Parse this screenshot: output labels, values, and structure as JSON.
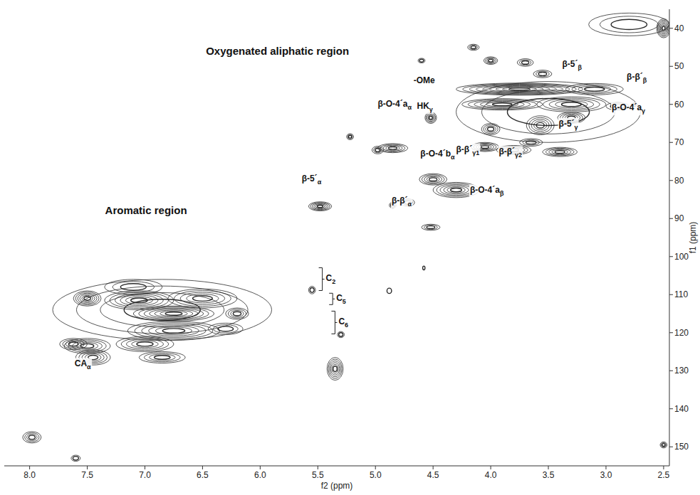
{
  "chart_data": {
    "type": "contour",
    "x_label": "f2 (ppm)",
    "y_label": "f1 (ppm)",
    "xlim": [
      8.22,
      2.45
    ],
    "ylim": [
      35,
      155
    ],
    "xticks": [
      {
        "value": 8,
        "label": "8.0"
      },
      {
        "value": 7.5,
        "label": "7.5"
      },
      {
        "value": 7,
        "label": "7.0"
      },
      {
        "value": 6.5,
        "label": "6.5"
      },
      {
        "value": 6,
        "label": "6.0"
      },
      {
        "value": 5.5,
        "label": "5.5"
      },
      {
        "value": 5,
        "label": "5.0"
      },
      {
        "value": 4.5,
        "label": "4.5"
      },
      {
        "value": 4,
        "label": "4.0"
      },
      {
        "value": 3.5,
        "label": "3.5"
      },
      {
        "value": 3,
        "label": "3.0"
      },
      {
        "value": 2.5,
        "label": "2.5"
      }
    ],
    "yticks": [
      40,
      50,
      60,
      70,
      80,
      90,
      100,
      110,
      120,
      130,
      140,
      150
    ],
    "color": "#2b2b2b",
    "peaks": [
      {
        "x": 6.85,
        "y": 114,
        "wx": 0.95,
        "wy": 8,
        "levels": 4
      },
      {
        "x": 7.05,
        "y": 111.5,
        "wx": 0.3,
        "wy": 2.5,
        "levels": 6
      },
      {
        "x": 6.75,
        "y": 115,
        "wx": 0.35,
        "wy": 2,
        "levels": 7
      },
      {
        "x": 6.5,
        "y": 111,
        "wx": 0.3,
        "wy": 2.5,
        "levels": 5
      },
      {
        "x": 6.75,
        "y": 119.5,
        "wx": 0.4,
        "wy": 2.5,
        "levels": 6
      },
      {
        "x": 7.5,
        "y": 111,
        "wx": 0.12,
        "wy": 2,
        "levels": 6
      },
      {
        "x": 7.0,
        "y": 123,
        "wx": 0.25,
        "wy": 2,
        "levels": 5
      },
      {
        "x": 7.5,
        "y": 123.5,
        "wx": 0.2,
        "wy": 2,
        "levels": 5
      },
      {
        "x": 7.62,
        "y": 123,
        "wx": 0.12,
        "wy": 1.5,
        "levels": 4
      },
      {
        "x": 7.45,
        "y": 126.5,
        "wx": 0.15,
        "wy": 2,
        "levels": 5
      },
      {
        "x": 6.85,
        "y": 126.5,
        "wx": 0.2,
        "wy": 1.5,
        "levels": 4
      },
      {
        "x": 6.2,
        "y": 115,
        "wx": 0.1,
        "wy": 1.5,
        "levels": 4
      },
      {
        "x": 7.1,
        "y": 108,
        "wx": 0.25,
        "wy": 2,
        "levels": 3
      },
      {
        "x": 6.3,
        "y": 119,
        "wx": 0.15,
        "wy": 1.5,
        "levels": 3
      },
      {
        "x": 5.35,
        "y": 129.5,
        "wx": 0.07,
        "wy": 3,
        "levels": 6
      },
      {
        "x": 5.55,
        "y": 108.8,
        "wx": 0.03,
        "wy": 1,
        "levels": 2
      },
      {
        "x": 5.3,
        "y": 120.5,
        "wx": 0.03,
        "wy": 0.8,
        "levels": 2
      },
      {
        "x": 4.88,
        "y": 109,
        "wx": 0.02,
        "wy": 0.7,
        "levels": 1
      },
      {
        "x": 7.98,
        "y": 147.5,
        "wx": 0.08,
        "wy": 1.5,
        "levels": 4
      },
      {
        "x": 7.6,
        "y": 153,
        "wx": 0.04,
        "wy": 0.8,
        "levels": 2
      },
      {
        "x": 2.5,
        "y": 149.5,
        "wx": 0.03,
        "wy": 0.8,
        "levels": 3
      },
      {
        "x": 4.58,
        "y": 103,
        "wx": 0.01,
        "wy": 0.5,
        "levels": 1
      },
      {
        "x": 5.48,
        "y": 86.8,
        "wx": 0.1,
        "wy": 1.2,
        "levels": 6
      },
      {
        "x": 4.72,
        "y": 85.8,
        "wx": 0.06,
        "wy": 1,
        "levels": 3
      },
      {
        "x": 4.85,
        "y": 86.5,
        "wx": 0.03,
        "wy": 0.8,
        "levels": 2
      },
      {
        "x": 4.52,
        "y": 92.3,
        "wx": 0.08,
        "wy": 0.8,
        "levels": 3
      },
      {
        "x": 4.5,
        "y": 79.7,
        "wx": 0.12,
        "wy": 1.5,
        "levels": 5
      },
      {
        "x": 4.3,
        "y": 82.5,
        "wx": 0.2,
        "wy": 2,
        "levels": 6
      },
      {
        "x": 4.85,
        "y": 71.5,
        "wx": 0.13,
        "wy": 1.2,
        "levels": 5
      },
      {
        "x": 4.98,
        "y": 72,
        "wx": 0.05,
        "wy": 1,
        "levels": 3
      },
      {
        "x": 5.22,
        "y": 68.5,
        "wx": 0.03,
        "wy": 0.8,
        "levels": 3
      },
      {
        "x": 4.52,
        "y": 63.5,
        "wx": 0.05,
        "wy": 1.5,
        "levels": 5
      },
      {
        "x": 3.75,
        "y": 56,
        "wx": 0.55,
        "wy": 1.6,
        "levels": 9
      },
      {
        "x": 3.9,
        "y": 60,
        "wx": 0.35,
        "wy": 1.5,
        "levels": 6
      },
      {
        "x": 3.3,
        "y": 60,
        "wx": 0.3,
        "wy": 2,
        "levels": 5
      },
      {
        "x": 4.0,
        "y": 66.5,
        "wx": 0.08,
        "wy": 1.5,
        "levels": 4
      },
      {
        "x": 3.57,
        "y": 65.5,
        "wx": 0.12,
        "wy": 2.5,
        "levels": 5
      },
      {
        "x": 3.3,
        "y": 63.5,
        "wx": 0.12,
        "wy": 1.5,
        "levels": 5
      },
      {
        "x": 4.05,
        "y": 71.2,
        "wx": 0.12,
        "wy": 1.2,
        "levels": 5
      },
      {
        "x": 3.8,
        "y": 72,
        "wx": 0.15,
        "wy": 1.2,
        "levels": 5
      },
      {
        "x": 3.4,
        "y": 72.5,
        "wx": 0.15,
        "wy": 1.2,
        "levels": 5
      },
      {
        "x": 3.65,
        "y": 70,
        "wx": 0.1,
        "wy": 1,
        "levels": 3
      },
      {
        "x": 3.5,
        "y": 62,
        "wx": 0.8,
        "wy": 8,
        "levels": 3
      },
      {
        "x": 4.0,
        "y": 48.5,
        "wx": 0.06,
        "wy": 1,
        "levels": 4
      },
      {
        "x": 3.7,
        "y": 49,
        "wx": 0.07,
        "wy": 1,
        "levels": 3
      },
      {
        "x": 4.15,
        "y": 45,
        "wx": 0.05,
        "wy": 0.8,
        "levels": 3
      },
      {
        "x": 4.6,
        "y": 48.5,
        "wx": 0.03,
        "wy": 0.6,
        "levels": 2
      },
      {
        "x": 3.55,
        "y": 52,
        "wx": 0.08,
        "wy": 1,
        "levels": 3
      },
      {
        "x": 3.1,
        "y": 56,
        "wx": 0.25,
        "wy": 1.5,
        "levels": 4
      },
      {
        "x": 2.9,
        "y": 60.5,
        "wx": 0.1,
        "wy": 1,
        "levels": 2
      },
      {
        "x": 2.5,
        "y": 40,
        "wx": 0.06,
        "wy": 2.5,
        "levels": 7
      },
      {
        "x": 2.8,
        "y": 39,
        "wx": 0.35,
        "wy": 3,
        "levels": 3
      },
      {
        "x": 2.75,
        "y": 60,
        "wx": 0.01,
        "wy": 0.5,
        "levels": 1
      }
    ],
    "annotations": [
      {
        "text": "Oxygenated aliphatic region",
        "x": 5.85,
        "y": 47.0,
        "style": "region"
      },
      {
        "text": "Aromatic region",
        "x": 6.99,
        "y": 88.9,
        "style": "region"
      },
      {
        "text": "-OMe",
        "x": 4.67,
        "y": 54.4
      },
      {
        "text": "β-5´",
        "sub": "β",
        "x": 3.38,
        "y": 50.1
      },
      {
        "text": "β-β´",
        "sub": "β",
        "x": 2.82,
        "y": 53.5
      },
      {
        "text": "β-O-4´a",
        "sub": "γ",
        "x": 2.95,
        "y": 61.6
      },
      {
        "text": "β-5´",
        "sub": "γ",
        "x": 3.41,
        "y": 65.8
      },
      {
        "text": "HK",
        "sub": "γ",
        "x": 4.64,
        "y": 61.2
      },
      {
        "text": "β-O-4´a",
        "sub": "α",
        "x": 4.98,
        "y": 60.6
      },
      {
        "text": "β-β´",
        "sub": "γ1",
        "x": 4.3,
        "y": 72.5
      },
      {
        "text": "β-β´",
        "sub": "γ2",
        "x": 3.93,
        "y": 73.2
      },
      {
        "text": "β-O-4´b",
        "sub": "α",
        "x": 4.61,
        "y": 73.6
      },
      {
        "text": "β-O-4´a",
        "sub": "β",
        "x": 4.18,
        "y": 83.3
      },
      {
        "text": "β-β´",
        "sub": "α",
        "x": 4.86,
        "y": 86.1
      },
      {
        "text": "β-5´",
        "sub": "α",
        "x": 5.64,
        "y": 80.2
      },
      {
        "text": "C",
        "sub": "2",
        "x": 5.43,
        "y": 106.4,
        "style": "bracket"
      },
      {
        "text": "C",
        "sub": "5",
        "x": 5.34,
        "y": 111.6,
        "style": "bracket"
      },
      {
        "text": "C",
        "sub": "6",
        "x": 5.32,
        "y": 117.8,
        "style": "bracket"
      },
      {
        "text": "CA",
        "sub": "α",
        "x": 7.61,
        "y": 128.9
      }
    ]
  }
}
